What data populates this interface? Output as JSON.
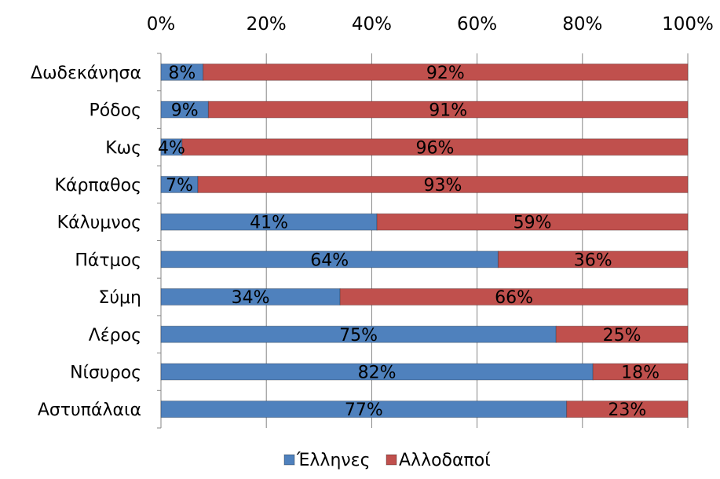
{
  "chart_data": {
    "type": "bar",
    "orientation": "horizontal",
    "stacked": "percent",
    "categories": [
      "Δωδεκάνησα",
      "Ρόδος",
      "Κως",
      "Κάρπαθος",
      "Κάλυμνος",
      "Πάτμος",
      "Σύμη",
      "Λέρος",
      "Νίσυρος",
      "Αστυπάλαια"
    ],
    "series": [
      {
        "name": "Έλληνες",
        "color": "#4F81BD",
        "values": [
          8,
          9,
          4,
          7,
          41,
          64,
          34,
          75,
          82,
          77
        ],
        "labels": [
          "8%",
          "9%",
          "4%",
          "7%",
          "41%",
          "64%",
          "34%",
          "75%",
          "82%",
          "77%"
        ]
      },
      {
        "name": "Αλλοδαποί",
        "color": "#C0504D",
        "values": [
          92,
          91,
          96,
          93,
          59,
          36,
          66,
          25,
          18,
          23
        ],
        "labels": [
          "92%",
          "91%",
          "96%",
          "93%",
          "59%",
          "36%",
          "66%",
          "25%",
          "18%",
          "23%"
        ]
      }
    ],
    "xlim": [
      0,
      100
    ],
    "x_ticks": [
      "0%",
      "20%",
      "40%",
      "60%",
      "80%",
      "100%"
    ],
    "x_axis_position": "top",
    "grid": true,
    "legend_position": "bottom"
  }
}
